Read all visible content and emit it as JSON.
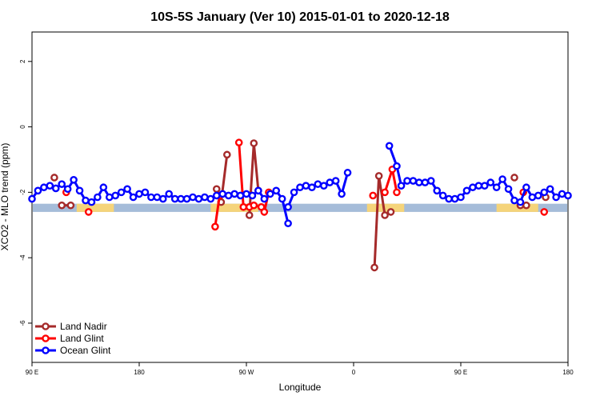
{
  "chart_data": {
    "type": "line",
    "title": "10S-5S January (Ver 10)   2015-01-01 to 2020-12-18",
    "xlabel": "Longitude",
    "ylabel": "XCO2 - MLO trend (ppm)",
    "xlim": [
      -180,
      180
    ],
    "ylim": [
      -7.2,
      2.9
    ],
    "xticks": [
      {
        "value": -180,
        "label": "90 E"
      },
      {
        "value": -108,
        "label": "180"
      },
      {
        "value": -36,
        "label": "90 W"
      },
      {
        "value": 36,
        "label": "0"
      },
      {
        "value": 108,
        "label": "90 E"
      },
      {
        "value": 180,
        "label": "180"
      }
    ],
    "yticks": [
      {
        "value": -6,
        "label": "-6"
      },
      {
        "value": -4,
        "label": "-4"
      },
      {
        "value": -2,
        "label": "-2"
      },
      {
        "value": 0,
        "label": "0"
      },
      {
        "value": 2,
        "label": "2"
      }
    ],
    "background_band": {
      "y_bottom": -2.6,
      "y_top": -2.35,
      "color": "#a5bcd9"
    },
    "land_regions": [
      {
        "x_start": -150,
        "x_end": -125,
        "color": "#f5d47a"
      },
      {
        "x_start": -60,
        "x_end": -28,
        "color": "#f5d47a"
      },
      {
        "x_start": 45,
        "x_end": 70,
        "color": "#f5d47a"
      },
      {
        "x_start": 132,
        "x_end": 160,
        "color": "#f5d47a"
      }
    ],
    "series": [
      {
        "name": "Land Nadir",
        "color": "#a52a2a",
        "segments": [
          [
            {
              "x": -165,
              "y": -1.55
            }
          ],
          [
            {
              "x": -160,
              "y": -2.4
            },
            {
              "x": -154,
              "y": -2.4
            }
          ],
          [
            {
              "x": -56,
              "y": -1.9
            },
            {
              "x": -53,
              "y": -2.3
            },
            {
              "x": -49,
              "y": -0.85
            }
          ],
          [
            {
              "x": -34,
              "y": -2.7
            },
            {
              "x": -31,
              "y": -0.5
            },
            {
              "x": -28,
              "y": -1.95
            }
          ],
          [
            {
              "x": 50,
              "y": -4.3
            },
            {
              "x": 53,
              "y": -1.5
            },
            {
              "x": 57,
              "y": -2.7
            },
            {
              "x": 61,
              "y": -2.6
            }
          ],
          [
            {
              "x": 144,
              "y": -1.55
            }
          ],
          [
            {
              "x": 148,
              "y": -2.4
            },
            {
              "x": 152,
              "y": -2.4
            }
          ],
          [
            {
              "x": 165,
              "y": -2.15
            }
          ]
        ]
      },
      {
        "name": "Land Glint",
        "color": "#ff0000",
        "segments": [
          [
            {
              "x": -157,
              "y": -2.0
            }
          ],
          [
            {
              "x": -142,
              "y": -2.6
            }
          ],
          [
            {
              "x": -57,
              "y": -3.05
            },
            {
              "x": -54,
              "y": -2.1
            }
          ],
          [
            {
              "x": -41,
              "y": -0.48
            },
            {
              "x": -38,
              "y": -2.45
            },
            {
              "x": -34,
              "y": -2.45
            },
            {
              "x": -31,
              "y": -2.4
            },
            {
              "x": -26,
              "y": -2.45
            },
            {
              "x": -24,
              "y": -2.6
            },
            {
              "x": -21,
              "y": -2.0
            }
          ],
          [
            {
              "x": 49,
              "y": -2.1
            }
          ],
          [
            {
              "x": 57,
              "y": -2.0
            },
            {
              "x": 62,
              "y": -1.3
            },
            {
              "x": 65,
              "y": -2.0
            }
          ],
          [
            {
              "x": 150,
              "y": -2.0
            }
          ],
          [
            {
              "x": 164,
              "y": -2.6
            }
          ]
        ]
      },
      {
        "name": "Ocean Glint",
        "color": "#0000ff",
        "segments": [
          [
            {
              "x": -180,
              "y": -2.2
            },
            {
              "x": -176,
              "y": -1.95
            },
            {
              "x": -172,
              "y": -1.85
            },
            {
              "x": -168,
              "y": -1.8
            },
            {
              "x": -164,
              "y": -1.88
            },
            {
              "x": -160,
              "y": -1.75
            },
            {
              "x": -156,
              "y": -1.9
            },
            {
              "x": -152,
              "y": -1.62
            },
            {
              "x": -148,
              "y": -1.95
            },
            {
              "x": -144,
              "y": -2.25
            },
            {
              "x": -140,
              "y": -2.3
            },
            {
              "x": -136,
              "y": -2.15
            },
            {
              "x": -132,
              "y": -1.85
            },
            {
              "x": -128,
              "y": -2.15
            },
            {
              "x": -124,
              "y": -2.1
            },
            {
              "x": -120,
              "y": -2.0
            },
            {
              "x": -116,
              "y": -1.9
            },
            {
              "x": -112,
              "y": -2.15
            },
            {
              "x": -108,
              "y": -2.05
            },
            {
              "x": -104,
              "y": -2.0
            },
            {
              "x": -100,
              "y": -2.15
            },
            {
              "x": -96,
              "y": -2.15
            },
            {
              "x": -92,
              "y": -2.2
            },
            {
              "x": -88,
              "y": -2.05
            },
            {
              "x": -84,
              "y": -2.2
            },
            {
              "x": -80,
              "y": -2.2
            },
            {
              "x": -76,
              "y": -2.2
            },
            {
              "x": -72,
              "y": -2.15
            },
            {
              "x": -68,
              "y": -2.2
            },
            {
              "x": -64,
              "y": -2.15
            },
            {
              "x": -60,
              "y": -2.2
            },
            {
              "x": -56,
              "y": -2.1
            },
            {
              "x": -52,
              "y": -2.05
            },
            {
              "x": -48,
              "y": -2.1
            },
            {
              "x": -44,
              "y": -2.05
            },
            {
              "x": -40,
              "y": -2.1
            },
            {
              "x": -36,
              "y": -2.05
            },
            {
              "x": -32,
              "y": -2.1
            },
            {
              "x": -28,
              "y": -1.95
            },
            {
              "x": -24,
              "y": -2.2
            },
            {
              "x": -20,
              "y": -2.05
            },
            {
              "x": -16,
              "y": -1.95
            },
            {
              "x": -12,
              "y": -2.2
            },
            {
              "x": -8,
              "y": -2.95
            }
          ],
          [
            {
              "x": -8,
              "y": -2.45
            },
            {
              "x": -4,
              "y": -2.0
            },
            {
              "x": 0,
              "y": -1.85
            },
            {
              "x": 4,
              "y": -1.8
            },
            {
              "x": 8,
              "y": -1.85
            },
            {
              "x": 12,
              "y": -1.75
            },
            {
              "x": 16,
              "y": -1.8
            },
            {
              "x": 20,
              "y": -1.7
            },
            {
              "x": 24,
              "y": -1.65
            },
            {
              "x": 28,
              "y": -2.05
            },
            {
              "x": 32,
              "y": -1.4
            }
          ],
          [
            {
              "x": 60,
              "y": -0.58
            },
            {
              "x": 65,
              "y": -1.2
            },
            {
              "x": 68,
              "y": -1.8
            },
            {
              "x": 72,
              "y": -1.65
            },
            {
              "x": 76,
              "y": -1.65
            },
            {
              "x": 80,
              "y": -1.7
            },
            {
              "x": 84,
              "y": -1.7
            },
            {
              "x": 88,
              "y": -1.65
            },
            {
              "x": 92,
              "y": -1.95
            },
            {
              "x": 96,
              "y": -2.1
            },
            {
              "x": 100,
              "y": -2.2
            },
            {
              "x": 104,
              "y": -2.2
            },
            {
              "x": 108,
              "y": -2.15
            },
            {
              "x": 112,
              "y": -1.95
            },
            {
              "x": 116,
              "y": -1.85
            },
            {
              "x": 120,
              "y": -1.8
            },
            {
              "x": 124,
              "y": -1.8
            },
            {
              "x": 128,
              "y": -1.7
            },
            {
              "x": 132,
              "y": -1.85
            },
            {
              "x": 136,
              "y": -1.6
            },
            {
              "x": 140,
              "y": -1.9
            },
            {
              "x": 144,
              "y": -2.25
            },
            {
              "x": 148,
              "y": -2.3
            },
            {
              "x": 152,
              "y": -1.85
            },
            {
              "x": 156,
              "y": -2.15
            },
            {
              "x": 160,
              "y": -2.1
            },
            {
              "x": 164,
              "y": -2.0
            },
            {
              "x": 168,
              "y": -1.9
            },
            {
              "x": 172,
              "y": -2.15
            },
            {
              "x": 176,
              "y": -2.05
            },
            {
              "x": 180,
              "y": -2.1
            }
          ]
        ]
      }
    ],
    "legend": {
      "position": "bottom-left",
      "entries": [
        "Land Nadir",
        "Land Glint",
        "Ocean Glint"
      ]
    }
  }
}
